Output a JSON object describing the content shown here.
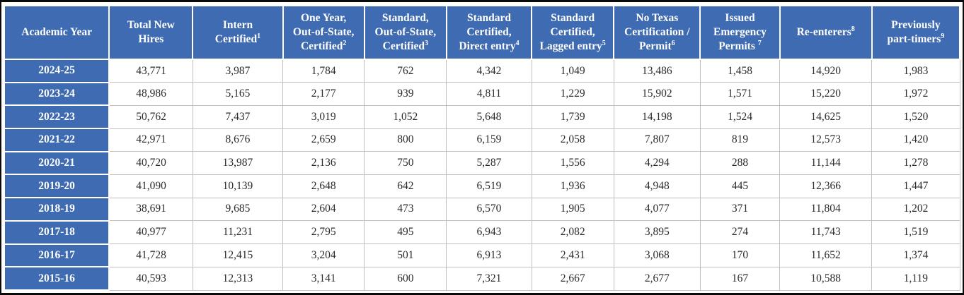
{
  "colors": {
    "header_blue": "#3E6BB2",
    "header_text": "#FFFFFF",
    "body_text": "#2B2B2B",
    "grid_line": "#C0C0C0",
    "frame_black": "#0A0A0A"
  },
  "table": {
    "columns": [
      {
        "lines": [
          "Academic Year"
        ],
        "sup": ""
      },
      {
        "lines": [
          "Total New",
          "Hires"
        ],
        "sup": ""
      },
      {
        "lines": [
          "Intern",
          "Certified"
        ],
        "sup": "1"
      },
      {
        "lines": [
          "One Year,",
          "Out-of-State,",
          "Certified"
        ],
        "sup": "2"
      },
      {
        "lines": [
          "Standard,",
          "Out-of-State,",
          "Certified"
        ],
        "sup": "3"
      },
      {
        "lines": [
          "Standard",
          "Certified,",
          "Direct entry"
        ],
        "sup": "4"
      },
      {
        "lines": [
          "Standard",
          "Certified,",
          "Lagged entry"
        ],
        "sup": "5"
      },
      {
        "lines": [
          "No Texas",
          "Certification /",
          "Permit"
        ],
        "sup": "6"
      },
      {
        "lines": [
          "Issued",
          "Emergency",
          "Permits "
        ],
        "sup": "7"
      },
      {
        "lines": [
          "Re-enterers"
        ],
        "sup": "8"
      },
      {
        "lines": [
          "Previously",
          "part-timers"
        ],
        "sup": "9"
      }
    ],
    "rows": [
      {
        "year": "2024-25",
        "values": [
          "43,771",
          "3,987",
          "1,784",
          "762",
          "4,342",
          "1,049",
          "13,486",
          "1,458",
          "14,920",
          "1,983"
        ]
      },
      {
        "year": "2023-24",
        "values": [
          "48,986",
          "5,165",
          "2,177",
          "939",
          "4,811",
          "1,229",
          "15,902",
          "1,571",
          "15,220",
          "1,972"
        ]
      },
      {
        "year": "2022-23",
        "values": [
          "50,762",
          "7,437",
          "3,019",
          "1,052",
          "5,648",
          "1,739",
          "14,198",
          "1,524",
          "14,625",
          "1,520"
        ]
      },
      {
        "year": "2021-22",
        "values": [
          "42,971",
          "8,676",
          "2,659",
          "800",
          "6,159",
          "2,058",
          "7,807",
          "819",
          "12,573",
          "1,420"
        ]
      },
      {
        "year": "2020-21",
        "values": [
          "40,720",
          "13,987",
          "2,136",
          "750",
          "5,287",
          "1,556",
          "4,294",
          "288",
          "11,144",
          "1,278"
        ]
      },
      {
        "year": "2019-20",
        "values": [
          "41,090",
          "10,139",
          "2,648",
          "642",
          "6,519",
          "1,936",
          "4,948",
          "445",
          "12,366",
          "1,447"
        ]
      },
      {
        "year": "2018-19",
        "values": [
          "38,691",
          "9,685",
          "2,604",
          "473",
          "6,570",
          "1,905",
          "4,077",
          "371",
          "11,804",
          "1,202"
        ]
      },
      {
        "year": "2017-18",
        "values": [
          "40,977",
          "11,231",
          "2,795",
          "495",
          "6,943",
          "2,082",
          "3,895",
          "274",
          "11,743",
          "1,519"
        ]
      },
      {
        "year": "2016-17",
        "values": [
          "41,728",
          "12,415",
          "3,204",
          "501",
          "6,913",
          "2,431",
          "3,068",
          "170",
          "11,652",
          "1,374"
        ]
      },
      {
        "year": "2015-16",
        "values": [
          "40,593",
          "12,313",
          "3,141",
          "600",
          "7,321",
          "2,667",
          "2,677",
          "167",
          "10,588",
          "1,119"
        ]
      }
    ]
  }
}
